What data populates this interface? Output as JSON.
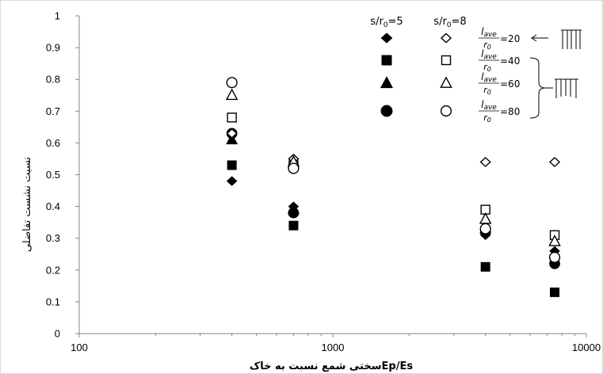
{
  "chart_data": {
    "type": "scatter",
    "title": "",
    "xlabel": "سختی شمع نسبت به خاکEp/Es",
    "ylabel": "نسبت نشست تفاضلی",
    "xscale": "log",
    "xlim": [
      100,
      10000
    ],
    "ylim": [
      0,
      1
    ],
    "x_ticks": [
      100,
      1000,
      10000
    ],
    "x_tick_labels": [
      "100",
      "1000",
      "10000"
    ],
    "y_ticks": [
      0,
      0.1,
      0.2,
      0.3,
      0.4,
      0.5,
      0.6,
      0.7,
      0.8,
      0.9,
      1
    ],
    "y_tick_labels": [
      "0",
      "0.1",
      "0.2",
      "0.3",
      "0.4",
      "0.5",
      "0.6",
      "0.7",
      "0.8",
      "0.9",
      "1"
    ],
    "grid": false,
    "legend_position": "top-right",
    "legend_group_headers": [
      "s/r0=5",
      "s/r0=8"
    ],
    "legend_rows": [
      {
        "ratio": "lave/r0",
        "value": "20"
      },
      {
        "ratio": "lave/r0",
        "value": "40"
      },
      {
        "ratio": "lave/r0",
        "value": "60"
      },
      {
        "ratio": "lave/r0",
        "value": "80"
      }
    ],
    "series": [
      {
        "name": "s/r0=5, lave/r0=20",
        "marker": "diamond",
        "filled": true,
        "x": [
          400,
          700,
          4000,
          7500
        ],
        "y": [
          0.48,
          0.4,
          0.31,
          0.26
        ]
      },
      {
        "name": "s/r0=5, lave/r0=40",
        "marker": "square",
        "filled": true,
        "x": [
          400,
          700,
          4000,
          7500
        ],
        "y": [
          0.53,
          0.34,
          0.21,
          0.13
        ]
      },
      {
        "name": "s/r0=5, lave/r0=60",
        "marker": "triangle",
        "filled": true,
        "x": [
          400,
          700,
          4000,
          7500
        ],
        "y": [
          0.61,
          0.39,
          0.33,
          0.25
        ]
      },
      {
        "name": "s/r0=5, lave/r0=80",
        "marker": "circle",
        "filled": true,
        "x": [
          400,
          700,
          4000,
          7500
        ],
        "y": [
          0.63,
          0.38,
          0.32,
          0.22
        ]
      },
      {
        "name": "s/r0=8, lave/r0=20",
        "marker": "diamond",
        "filled": false,
        "x": [
          400,
          700,
          4000,
          7500
        ],
        "y": [
          0.63,
          0.55,
          0.54,
          0.54
        ]
      },
      {
        "name": "s/r0=8, lave/r0=40",
        "marker": "square",
        "filled": false,
        "x": [
          400,
          700,
          4000,
          7500
        ],
        "y": [
          0.68,
          0.53,
          0.39,
          0.31
        ]
      },
      {
        "name": "s/r0=8, lave/r0=60",
        "marker": "triangle",
        "filled": false,
        "x": [
          400,
          700,
          4000,
          7500
        ],
        "y": [
          0.75,
          0.54,
          0.36,
          0.29
        ]
      },
      {
        "name": "s/r0=8, lave/r0=80",
        "marker": "circle",
        "filled": false,
        "x": [
          400,
          700,
          4000,
          7500
        ],
        "y": [
          0.79,
          0.52,
          0.33,
          0.24
        ]
      }
    ]
  }
}
